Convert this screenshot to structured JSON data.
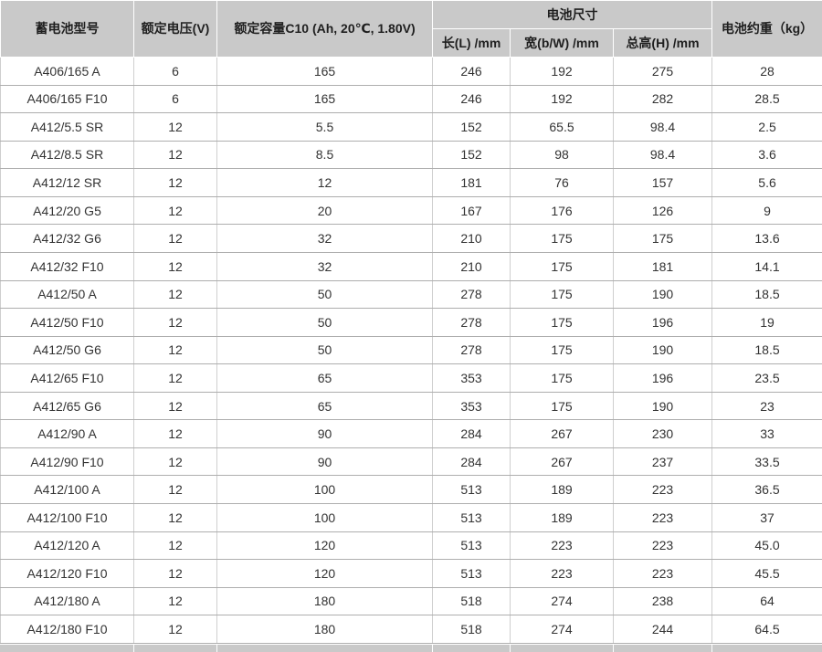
{
  "table": {
    "header": {
      "model": "蓄电池型号",
      "rated_voltage": "额定电压(V)",
      "rated_capacity": "额定容量C10 (Ah, 20℃, 1.80V)",
      "dimensions_group": "电池尺寸",
      "length": "长(L) /mm",
      "width": "宽(b/W) /mm",
      "total_height": "总高(H) /mm",
      "weight": "电池约重（kg）"
    },
    "rows": [
      [
        "A406/165 A",
        "6",
        "165",
        "246",
        "192",
        "275",
        "28"
      ],
      [
        "A406/165 F10",
        "6",
        "165",
        "246",
        "192",
        "282",
        "28.5"
      ],
      [
        "A412/5.5 SR",
        "12",
        "5.5",
        "152",
        "65.5",
        "98.4",
        "2.5"
      ],
      [
        "A412/8.5 SR",
        "12",
        "8.5",
        "152",
        "98",
        "98.4",
        "3.6"
      ],
      [
        "A412/12 SR",
        "12",
        "12",
        "181",
        "76",
        "157",
        "5.6"
      ],
      [
        "A412/20 G5",
        "12",
        "20",
        "167",
        "176",
        "126",
        "9"
      ],
      [
        "A412/32 G6",
        "12",
        "32",
        "210",
        "175",
        "175",
        "13.6"
      ],
      [
        "A412/32 F10",
        "12",
        "32",
        "210",
        "175",
        "181",
        "14.1"
      ],
      [
        "A412/50 A",
        "12",
        "50",
        "278",
        "175",
        "190",
        "18.5"
      ],
      [
        "A412/50 F10",
        "12",
        "50",
        "278",
        "175",
        "196",
        "19"
      ],
      [
        "A412/50 G6",
        "12",
        "50",
        "278",
        "175",
        "190",
        "18.5"
      ],
      [
        "A412/65 F10",
        "12",
        "65",
        "353",
        "175",
        "196",
        "23.5"
      ],
      [
        "A412/65 G6",
        "12",
        "65",
        "353",
        "175",
        "190",
        "23"
      ],
      [
        "A412/90 A",
        "12",
        "90",
        "284",
        "267",
        "230",
        "33"
      ],
      [
        "A412/90 F10",
        "12",
        "90",
        "284",
        "267",
        "237",
        "33.5"
      ],
      [
        "A412/100 A",
        "12",
        "100",
        "513",
        "189",
        "223",
        "36.5"
      ],
      [
        "A412/100 F10",
        "12",
        "100",
        "513",
        "189",
        "223",
        "37"
      ],
      [
        "A412/120 A",
        "12",
        "120",
        "513",
        "223",
        "223",
        "45.0"
      ],
      [
        "A412/120 F10",
        "12",
        "120",
        "513",
        "223",
        "223",
        "45.5"
      ],
      [
        "A412/180 A",
        "12",
        "180",
        "518",
        "274",
        "238",
        "64"
      ],
      [
        "A412/180 F10",
        "12",
        "180",
        "518",
        "274",
        "244",
        "64.5"
      ]
    ]
  },
  "colors": {
    "header_bg": "#c9c9c9",
    "header_separator": "#ffffff",
    "row_bg": "#ffffff",
    "border_horizontal": "#aeaeae",
    "border_vertical": "#cfcfcf",
    "header_text": "#1f1f1f",
    "body_text": "#333333"
  }
}
